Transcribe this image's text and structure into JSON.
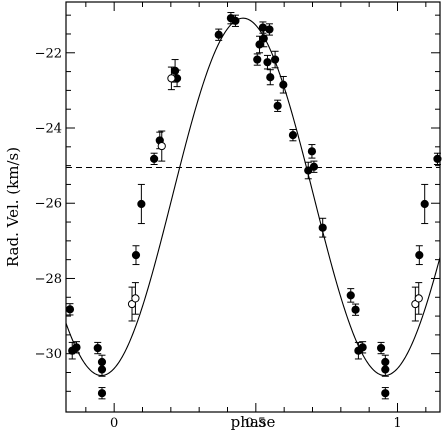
{
  "chart_data": {
    "type": "scatter",
    "xlabel": "phase",
    "ylabel": "Rad. Vel. (km/s)",
    "xlim": [
      -0.17,
      1.15
    ],
    "ylim": [
      -31.55,
      -20.65
    ],
    "x_ticks": [
      0,
      0.5,
      1
    ],
    "x_tick_labels": [
      "0",
      "0.5",
      "1"
    ],
    "y_ticks": [
      -22,
      -24,
      -26,
      -28,
      -30
    ],
    "y_tick_labels": [
      "−22",
      "−24",
      "−26",
      "−28",
      "−30"
    ],
    "grid": false,
    "legend": "none",
    "reference_line": {
      "y": -25.05,
      "style": "dashed"
    },
    "model_curve": {
      "type": "sinusoid",
      "gamma": -25.83,
      "amplitude": 4.75,
      "phase_of_minimum": -0.045
    },
    "series": [
      {
        "marker": "filled-circle",
        "points": [
          {
            "x": -0.156,
            "y": -28.82,
            "err": 0.15
          },
          {
            "x": -0.148,
            "y": -29.92,
            "err": 0.22
          },
          {
            "x": -0.133,
            "y": -29.83,
            "err": 0.15
          },
          {
            "x": -0.058,
            "y": -29.85,
            "err": 0.15
          },
          {
            "x": -0.043,
            "y": -30.22,
            "err": 0.18
          },
          {
            "x": -0.043,
            "y": -30.42,
            "err": 0.18
          },
          {
            "x": -0.043,
            "y": -31.05,
            "err": 0.15
          },
          {
            "x": 0.077,
            "y": -27.38,
            "err": 0.25
          },
          {
            "x": 0.096,
            "y": -26.02,
            "err": 0.52
          },
          {
            "x": 0.141,
            "y": -24.82,
            "err": 0.15
          },
          {
            "x": 0.161,
            "y": -24.33,
            "err": 0.22
          },
          {
            "x": 0.215,
            "y": -22.48,
            "err": 0.3
          },
          {
            "x": 0.222,
            "y": -22.68,
            "err": 0.22
          },
          {
            "x": 0.369,
            "y": -21.52,
            "err": 0.15
          },
          {
            "x": 0.412,
            "y": -21.08,
            "err": 0.15
          },
          {
            "x": 0.428,
            "y": -21.15,
            "err": 0.15
          },
          {
            "x": 0.505,
            "y": -22.18,
            "err": 0.15
          },
          {
            "x": 0.513,
            "y": -21.78,
            "err": 0.22
          },
          {
            "x": 0.525,
            "y": -21.33,
            "err": 0.15
          },
          {
            "x": 0.528,
            "y": -21.62,
            "err": 0.22
          },
          {
            "x": 0.541,
            "y": -22.25,
            "err": 0.18
          },
          {
            "x": 0.548,
            "y": -21.38,
            "err": 0.15
          },
          {
            "x": 0.551,
            "y": -22.65,
            "err": 0.2
          },
          {
            "x": 0.568,
            "y": -22.18,
            "err": 0.22
          },
          {
            "x": 0.577,
            "y": -23.41,
            "err": 0.15
          },
          {
            "x": 0.597,
            "y": -22.85,
            "err": 0.22
          },
          {
            "x": 0.631,
            "y": -24.19,
            "err": 0.15
          },
          {
            "x": 0.685,
            "y": -25.13,
            "err": 0.22
          },
          {
            "x": 0.698,
            "y": -24.62,
            "err": 0.18
          },
          {
            "x": 0.705,
            "y": -25.03,
            "err": 0.15
          },
          {
            "x": 0.736,
            "y": -26.65,
            "err": 0.25
          },
          {
            "x": 0.835,
            "y": -28.45,
            "err": 0.18
          },
          {
            "x": 0.852,
            "y": -28.83,
            "err": 0.15
          },
          {
            "x": 0.862,
            "y": -29.92,
            "err": 0.22
          },
          {
            "x": 0.877,
            "y": -29.83,
            "err": 0.15
          },
          {
            "x": 0.942,
            "y": -29.85,
            "err": 0.15
          },
          {
            "x": 0.957,
            "y": -30.22,
            "err": 0.18
          },
          {
            "x": 0.957,
            "y": -30.42,
            "err": 0.18
          },
          {
            "x": 0.957,
            "y": -31.05,
            "err": 0.15
          },
          {
            "x": 1.077,
            "y": -27.38,
            "err": 0.25
          },
          {
            "x": 1.096,
            "y": -26.02,
            "err": 0.52
          },
          {
            "x": 1.141,
            "y": -24.82,
            "err": 0.15
          }
        ]
      },
      {
        "marker": "open-circle",
        "points": [
          {
            "x": 0.063,
            "y": -28.68,
            "err": 0.45
          },
          {
            "x": 0.075,
            "y": -28.53,
            "err": 0.42
          },
          {
            "x": 0.168,
            "y": -24.48,
            "err": 0.4
          },
          {
            "x": 0.202,
            "y": -22.68,
            "err": 0.3
          },
          {
            "x": 1.063,
            "y": -28.68,
            "err": 0.45
          },
          {
            "x": 1.075,
            "y": -28.53,
            "err": 0.42
          }
        ]
      }
    ]
  }
}
